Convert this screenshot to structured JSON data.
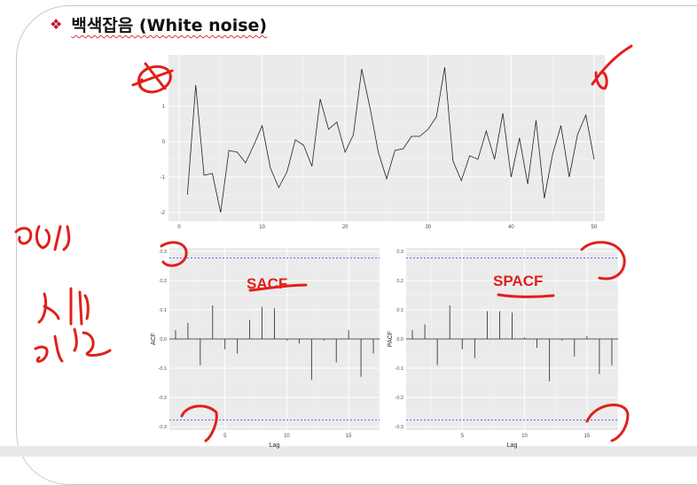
{
  "slide": {
    "bullet_icon": "diamond-bullet-icon",
    "title": "백색잡음 (White noise)"
  },
  "annotations": {
    "sacf_label": "SACF",
    "spacf_label": "SPACF",
    "hand_note_line1": "95%",
    "hand_note_line2": "신뢰",
    "hand_note_line3": "구간",
    "ink_color": "#e0201a"
  },
  "chart_data": [
    {
      "type": "line",
      "title": "",
      "xlabel": "",
      "ylabel": "",
      "x": [
        1,
        2,
        3,
        4,
        5,
        6,
        7,
        8,
        9,
        10,
        11,
        12,
        13,
        14,
        15,
        16,
        17,
        18,
        19,
        20,
        21,
        22,
        23,
        24,
        25,
        26,
        27,
        28,
        29,
        30,
        31,
        32,
        33,
        34,
        35,
        36,
        37,
        38,
        39,
        40,
        41,
        42,
        43,
        44,
        45,
        46,
        47,
        48,
        49,
        50
      ],
      "values": [
        -1.5,
        1.6,
        -0.95,
        -0.9,
        -2.0,
        -0.25,
        -0.3,
        -0.6,
        -0.1,
        0.45,
        -0.75,
        -1.3,
        -0.85,
        0.05,
        -0.1,
        -0.7,
        1.2,
        0.35,
        0.55,
        -0.3,
        0.2,
        2.05,
        0.95,
        -0.3,
        -1.05,
        -0.25,
        -0.2,
        0.15,
        0.15,
        0.35,
        0.7,
        2.1,
        -0.55,
        -1.1,
        -0.4,
        -0.5,
        0.3,
        -0.5,
        0.8,
        -1.0,
        0.1,
        -1.2,
        0.6,
        -1.6,
        -0.35,
        0.45,
        -1.0,
        0.2,
        0.75,
        -0.5
      ],
      "xlim": [
        0,
        50
      ],
      "ylim": [
        -2.1,
        2.3
      ],
      "x_ticks": [
        "0",
        "10",
        "20",
        "30",
        "40",
        "50"
      ],
      "y_ticks": [
        "-2",
        "-1",
        "0",
        "1"
      ],
      "grid": true,
      "line_color": "#222222",
      "panel_color": "#ebebeb"
    },
    {
      "type": "bar",
      "title": "",
      "xlabel": "Lag",
      "ylabel": "ACF",
      "lags": [
        1,
        2,
        3,
        4,
        5,
        6,
        7,
        8,
        9,
        10,
        11,
        12,
        13,
        14,
        15,
        16,
        17
      ],
      "values": [
        0.03,
        0.055,
        -0.09,
        0.115,
        -0.035,
        -0.05,
        0.065,
        0.11,
        0.105,
        -0.005,
        -0.015,
        -0.14,
        -0.005,
        -0.08,
        0.03,
        -0.13,
        -0.05
      ],
      "ci": 0.277,
      "ylim": [
        -0.3,
        0.3
      ],
      "xlim": [
        0.5,
        17.5
      ],
      "x_ticks": [
        "5",
        "10",
        "15"
      ],
      "y_ticks": [
        "-0.3",
        "-0.2",
        "-0.1",
        "0.0",
        "0.1",
        "0.2",
        "0.3"
      ],
      "grid": true,
      "ci_color": "#3a3aff",
      "panel_color": "#ebebeb"
    },
    {
      "type": "bar",
      "title": "",
      "xlabel": "Lag",
      "ylabel": "PACF",
      "lags": [
        1,
        2,
        3,
        4,
        5,
        6,
        7,
        8,
        9,
        10,
        11,
        12,
        13,
        14,
        15,
        16,
        17
      ],
      "values": [
        0.03,
        0.05,
        -0.09,
        0.115,
        -0.035,
        -0.065,
        0.095,
        0.095,
        0.09,
        0.005,
        -0.03,
        -0.145,
        -0.005,
        -0.06,
        0.01,
        -0.12,
        -0.09
      ],
      "ci": 0.277,
      "ylim": [
        -0.3,
        0.3
      ],
      "xlim": [
        0.5,
        17.5
      ],
      "x_ticks": [
        "5",
        "10",
        "15"
      ],
      "y_ticks": [
        "-0.3",
        "-0.2",
        "-0.1",
        "0.0",
        "0.1",
        "0.2",
        "0.3"
      ],
      "grid": true,
      "ci_color": "#3a3aff",
      "panel_color": "#ebebeb"
    }
  ]
}
